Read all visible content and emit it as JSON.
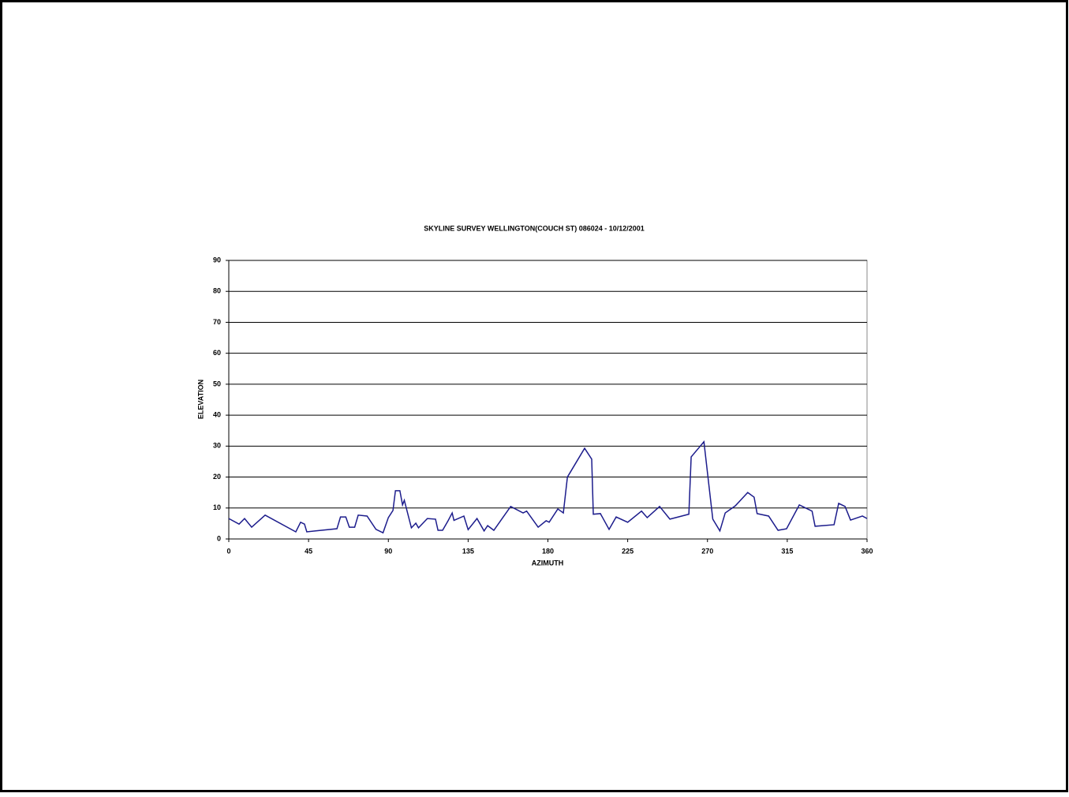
{
  "chart_data": {
    "type": "line",
    "title": "SKYLINE SURVEY WELLINGTON(COUCH ST) 086024 - 10/12/2001",
    "x_label": "AZIMUTH",
    "y_label": "ELEVATION",
    "x": [
      0,
      5.8,
      8.9,
      12.9,
      20.5,
      37.8,
      40.5,
      42.7,
      44,
      49,
      61,
      63,
      66,
      68,
      71,
      73,
      78,
      83,
      87,
      90,
      92.6,
      94,
      96.5,
      98,
      99,
      103,
      105.5,
      107,
      112,
      116.6,
      118,
      120.6,
      123.7,
      126,
      127,
      132.6,
      135,
      140,
      144,
      146,
      149.5,
      159,
      166,
      168,
      174.5,
      179,
      180.7,
      185.6,
      188.7,
      191,
      200.7,
      204.7,
      205.6,
      209.6,
      214.5,
      218.5,
      225,
      232.8,
      236,
      243,
      248.8,
      259.5,
      260.8,
      268,
      273,
      277,
      280,
      285.7,
      292.7,
      296.3,
      298,
      304.5,
      309.8,
      314.6,
      321.8,
      329,
      330.7,
      341.4,
      344,
      347.6,
      350.7,
      357.4,
      360
    ],
    "series": [
      {
        "name": "Elevation",
        "color": "#1c1c8c",
        "values": [
          6.6,
          4.8,
          6.6,
          3.8,
          7.7,
          2.3,
          5.4,
          4.8,
          2.3,
          2.6,
          3.3,
          7.1,
          7.1,
          3.8,
          3.8,
          7.7,
          7.4,
          3.1,
          2,
          6.9,
          9.2,
          15.6,
          15.6,
          11,
          12.5,
          3.6,
          5.1,
          3.6,
          6.6,
          6.4,
          2.8,
          2.8,
          5.9,
          8.4,
          6,
          7.4,
          3,
          6.6,
          2.6,
          4.3,
          2.8,
          10.5,
          8.4,
          9,
          3.8,
          5.9,
          5.4,
          9.7,
          8.4,
          20,
          29.3,
          25.8,
          8,
          8.2,
          3.1,
          7.1,
          5.4,
          9,
          6.9,
          10.5,
          6.4,
          8,
          26.5,
          31.4,
          6.4,
          2.6,
          8.4,
          10.7,
          15,
          13.5,
          8.2,
          7.4,
          2.8,
          3.3,
          11,
          9,
          4.1,
          4.6,
          11.5,
          10.5,
          6.1,
          7.4,
          6.6
        ]
      }
    ],
    "xlim": [
      0,
      360
    ],
    "xticks": [
      0,
      45,
      90,
      135,
      180,
      225,
      270,
      315,
      360
    ],
    "ylim": [
      0,
      90
    ],
    "yticks": [
      0,
      10,
      20,
      30,
      40,
      50,
      60,
      70,
      80,
      90
    ],
    "grid": true
  }
}
